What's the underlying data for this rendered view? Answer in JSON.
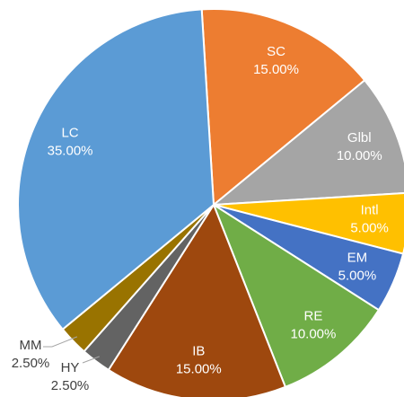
{
  "chart_data": {
    "type": "pie",
    "categories": [
      "SC",
      "Glbl",
      "Intl",
      "EM",
      "RE",
      "IB",
      "HY",
      "MM",
      "LC"
    ],
    "values": [
      15,
      10,
      5,
      5,
      10,
      15,
      2.5,
      2.5,
      35
    ],
    "value_labels": [
      "15.00%",
      "10.00%",
      "5.00%",
      "5.00%",
      "10.00%",
      "15.00%",
      "2.50%",
      "2.50%",
      "35.00%"
    ],
    "colors": [
      "#ed7d31",
      "#a5a5a5",
      "#ffc000",
      "#4472c4",
      "#70ad47",
      "#9e480e",
      "#636363",
      "#997300",
      "#5b9bd5"
    ]
  }
}
